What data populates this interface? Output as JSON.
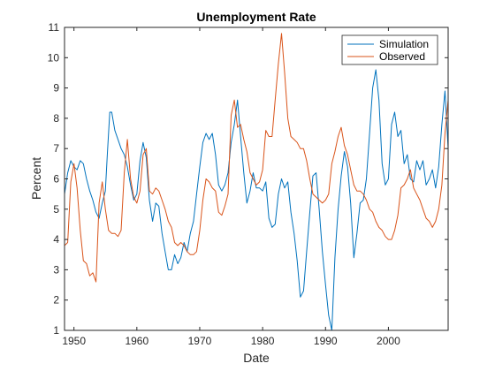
{
  "chart_data": {
    "type": "line",
    "title": "Unemployment Rate",
    "xlabel": "Date",
    "ylabel": "Percent",
    "xlim": [
      1948.5,
      2009.5
    ],
    "ylim": [
      1,
      11
    ],
    "xticks": [
      1950,
      1960,
      1970,
      1980,
      1990,
      2000
    ],
    "xtick_labels": [
      "1950",
      "1960",
      "1970",
      "1980",
      "1990",
      "2000"
    ],
    "yticks": [
      1,
      2,
      3,
      4,
      5,
      6,
      7,
      8,
      9,
      10,
      11
    ],
    "ytick_labels": [
      "1",
      "2",
      "3",
      "4",
      "5",
      "6",
      "7",
      "8",
      "9",
      "10",
      "11"
    ],
    "grid": false,
    "legend_position": "top-right",
    "series": [
      {
        "name": "Simulation",
        "color": "#0072BD",
        "points": [
          [
            1948.5,
            5.5
          ],
          [
            1949.0,
            6.2
          ],
          [
            1949.5,
            6.6
          ],
          [
            1950.0,
            6.4
          ],
          [
            1950.5,
            6.3
          ],
          [
            1951.0,
            6.6
          ],
          [
            1951.5,
            6.5
          ],
          [
            1952.0,
            6.0
          ],
          [
            1952.5,
            5.6
          ],
          [
            1953.0,
            5.3
          ],
          [
            1953.5,
            4.9
          ],
          [
            1954.0,
            4.7
          ],
          [
            1954.5,
            5.2
          ],
          [
            1955.0,
            5.6
          ],
          [
            1955.3,
            6.8
          ],
          [
            1955.7,
            8.2
          ],
          [
            1956.0,
            8.2
          ],
          [
            1956.5,
            7.6
          ],
          [
            1957.0,
            7.3
          ],
          [
            1957.5,
            7.0
          ],
          [
            1958.0,
            6.8
          ],
          [
            1958.5,
            6.4
          ],
          [
            1959.0,
            5.8
          ],
          [
            1959.5,
            5.3
          ],
          [
            1960.0,
            5.5
          ],
          [
            1960.5,
            6.6
          ],
          [
            1961.0,
            7.2
          ],
          [
            1961.5,
            6.7
          ],
          [
            1962.0,
            5.3
          ],
          [
            1962.5,
            4.6
          ],
          [
            1963.0,
            5.2
          ],
          [
            1963.5,
            5.1
          ],
          [
            1964.0,
            4.2
          ],
          [
            1964.5,
            3.6
          ],
          [
            1965.0,
            3.0
          ],
          [
            1965.5,
            3.0
          ],
          [
            1966.0,
            3.5
          ],
          [
            1966.5,
            3.2
          ],
          [
            1967.0,
            3.4
          ],
          [
            1967.5,
            3.9
          ],
          [
            1968.0,
            3.6
          ],
          [
            1968.5,
            4.2
          ],
          [
            1969.0,
            4.6
          ],
          [
            1969.5,
            5.5
          ],
          [
            1970.0,
            6.4
          ],
          [
            1970.5,
            7.2
          ],
          [
            1971.0,
            7.5
          ],
          [
            1971.5,
            7.3
          ],
          [
            1972.0,
            7.5
          ],
          [
            1972.5,
            6.8
          ],
          [
            1973.0,
            5.8
          ],
          [
            1973.5,
            5.6
          ],
          [
            1974.0,
            5.8
          ],
          [
            1974.5,
            6.2
          ],
          [
            1975.0,
            7.2
          ],
          [
            1975.5,
            7.8
          ],
          [
            1976.0,
            8.6
          ],
          [
            1976.5,
            7.4
          ],
          [
            1977.0,
            6.2
          ],
          [
            1977.5,
            5.2
          ],
          [
            1978.0,
            5.6
          ],
          [
            1978.5,
            6.2
          ],
          [
            1979.0,
            5.7
          ],
          [
            1979.5,
            5.7
          ],
          [
            1980.0,
            5.6
          ],
          [
            1980.5,
            5.9
          ],
          [
            1981.0,
            4.7
          ],
          [
            1981.5,
            4.4
          ],
          [
            1982.0,
            4.5
          ],
          [
            1982.5,
            5.5
          ],
          [
            1983.0,
            6.0
          ],
          [
            1983.5,
            5.7
          ],
          [
            1984.0,
            5.9
          ],
          [
            1984.5,
            4.9
          ],
          [
            1985.0,
            4.2
          ],
          [
            1985.5,
            3.3
          ],
          [
            1986.0,
            2.1
          ],
          [
            1986.5,
            2.3
          ],
          [
            1987.0,
            3.6
          ],
          [
            1987.5,
            4.9
          ],
          [
            1988.0,
            6.1
          ],
          [
            1988.5,
            6.2
          ],
          [
            1989.0,
            5.0
          ],
          [
            1989.5,
            3.6
          ],
          [
            1990.0,
            2.5
          ],
          [
            1990.5,
            1.5
          ],
          [
            1991.0,
            1.0
          ],
          [
            1991.5,
            3.4
          ],
          [
            1992.0,
            5.0
          ],
          [
            1992.5,
            6.1
          ],
          [
            1993.0,
            6.9
          ],
          [
            1993.5,
            6.4
          ],
          [
            1994.0,
            5.2
          ],
          [
            1994.5,
            3.4
          ],
          [
            1995.0,
            4.2
          ],
          [
            1995.5,
            5.2
          ],
          [
            1996.0,
            5.3
          ],
          [
            1996.5,
            6.0
          ],
          [
            1997.0,
            7.5
          ],
          [
            1997.5,
            9.0
          ],
          [
            1998.0,
            9.6
          ],
          [
            1998.5,
            8.6
          ],
          [
            1999.0,
            6.5
          ],
          [
            1999.5,
            5.8
          ],
          [
            2000.0,
            6.0
          ],
          [
            2000.5,
            7.8
          ],
          [
            2001.0,
            8.2
          ],
          [
            2001.5,
            7.4
          ],
          [
            2002.0,
            7.6
          ],
          [
            2002.5,
            6.5
          ],
          [
            2003.0,
            6.8
          ],
          [
            2003.5,
            6.0
          ],
          [
            2004.0,
            5.9
          ],
          [
            2004.5,
            6.6
          ],
          [
            2005.0,
            6.3
          ],
          [
            2005.5,
            6.6
          ],
          [
            2006.0,
            5.8
          ],
          [
            2006.5,
            6.0
          ],
          [
            2007.0,
            6.3
          ],
          [
            2007.5,
            5.7
          ],
          [
            2008.0,
            6.4
          ],
          [
            2008.5,
            7.8
          ],
          [
            2009.0,
            8.9
          ],
          [
            2009.5,
            7.0
          ]
        ]
      },
      {
        "name": "Observed",
        "color": "#D95319",
        "points": [
          [
            1948.5,
            3.8
          ],
          [
            1949.0,
            3.9
          ],
          [
            1949.5,
            5.9
          ],
          [
            1950.0,
            6.5
          ],
          [
            1950.5,
            5.7
          ],
          [
            1951.0,
            4.3
          ],
          [
            1951.5,
            3.3
          ],
          [
            1952.0,
            3.2
          ],
          [
            1952.5,
            2.8
          ],
          [
            1953.0,
            2.9
          ],
          [
            1953.5,
            2.6
          ],
          [
            1954.0,
            5.2
          ],
          [
            1954.5,
            5.9
          ],
          [
            1955.0,
            5.0
          ],
          [
            1955.5,
            4.3
          ],
          [
            1956.0,
            4.2
          ],
          [
            1956.5,
            4.2
          ],
          [
            1957.0,
            4.1
          ],
          [
            1957.5,
            4.3
          ],
          [
            1958.0,
            6.2
          ],
          [
            1958.5,
            7.3
          ],
          [
            1959.0,
            6.0
          ],
          [
            1959.5,
            5.4
          ],
          [
            1960.0,
            5.2
          ],
          [
            1960.5,
            5.6
          ],
          [
            1961.0,
            6.8
          ],
          [
            1961.5,
            7.0
          ],
          [
            1962.0,
            5.6
          ],
          [
            1962.5,
            5.5
          ],
          [
            1963.0,
            5.7
          ],
          [
            1963.5,
            5.6
          ],
          [
            1964.0,
            5.3
          ],
          [
            1964.5,
            5.0
          ],
          [
            1965.0,
            4.6
          ],
          [
            1965.5,
            4.4
          ],
          [
            1966.0,
            3.9
          ],
          [
            1966.5,
            3.8
          ],
          [
            1967.0,
            3.9
          ],
          [
            1967.5,
            3.8
          ],
          [
            1968.0,
            3.6
          ],
          [
            1968.5,
            3.5
          ],
          [
            1969.0,
            3.5
          ],
          [
            1969.5,
            3.6
          ],
          [
            1970.0,
            4.3
          ],
          [
            1970.5,
            5.3
          ],
          [
            1971.0,
            6.0
          ],
          [
            1971.5,
            5.9
          ],
          [
            1972.0,
            5.7
          ],
          [
            1972.5,
            5.6
          ],
          [
            1973.0,
            4.9
          ],
          [
            1973.5,
            4.8
          ],
          [
            1974.0,
            5.1
          ],
          [
            1974.5,
            5.5
          ],
          [
            1975.0,
            8.1
          ],
          [
            1975.5,
            8.6
          ],
          [
            1976.0,
            7.7
          ],
          [
            1976.5,
            7.8
          ],
          [
            1977.0,
            7.3
          ],
          [
            1977.5,
            6.9
          ],
          [
            1978.0,
            6.2
          ],
          [
            1978.5,
            6.0
          ],
          [
            1979.0,
            5.8
          ],
          [
            1979.5,
            5.9
          ],
          [
            1980.0,
            6.3
          ],
          [
            1980.5,
            7.6
          ],
          [
            1981.0,
            7.4
          ],
          [
            1981.5,
            7.4
          ],
          [
            1982.0,
            8.6
          ],
          [
            1982.5,
            9.8
          ],
          [
            1983.0,
            10.8
          ],
          [
            1983.5,
            9.5
          ],
          [
            1984.0,
            8.0
          ],
          [
            1984.5,
            7.4
          ],
          [
            1985.0,
            7.3
          ],
          [
            1985.5,
            7.2
          ],
          [
            1986.0,
            7.0
          ],
          [
            1986.5,
            7.0
          ],
          [
            1987.0,
            6.6
          ],
          [
            1987.5,
            6.0
          ],
          [
            1988.0,
            5.5
          ],
          [
            1988.5,
            5.4
          ],
          [
            1989.0,
            5.3
          ],
          [
            1989.5,
            5.2
          ],
          [
            1990.0,
            5.3
          ],
          [
            1990.5,
            5.5
          ],
          [
            1991.0,
            6.5
          ],
          [
            1991.5,
            6.9
          ],
          [
            1992.0,
            7.4
          ],
          [
            1992.5,
            7.7
          ],
          [
            1993.0,
            7.1
          ],
          [
            1993.5,
            6.8
          ],
          [
            1994.0,
            6.3
          ],
          [
            1994.5,
            5.8
          ],
          [
            1995.0,
            5.6
          ],
          [
            1995.5,
            5.6
          ],
          [
            1996.0,
            5.5
          ],
          [
            1996.5,
            5.3
          ],
          [
            1997.0,
            5.0
          ],
          [
            1997.5,
            4.9
          ],
          [
            1998.0,
            4.6
          ],
          [
            1998.5,
            4.4
          ],
          [
            1999.0,
            4.3
          ],
          [
            1999.5,
            4.1
          ],
          [
            2000.0,
            4.0
          ],
          [
            2000.5,
            4.0
          ],
          [
            2001.0,
            4.3
          ],
          [
            2001.5,
            4.8
          ],
          [
            2002.0,
            5.7
          ],
          [
            2002.5,
            5.8
          ],
          [
            2003.0,
            6.0
          ],
          [
            2003.5,
            6.3
          ],
          [
            2004.0,
            5.7
          ],
          [
            2004.5,
            5.5
          ],
          [
            2005.0,
            5.3
          ],
          [
            2005.5,
            5.0
          ],
          [
            2006.0,
            4.7
          ],
          [
            2006.5,
            4.6
          ],
          [
            2007.0,
            4.4
          ],
          [
            2007.5,
            4.6
          ],
          [
            2008.0,
            5.0
          ],
          [
            2008.5,
            5.8
          ],
          [
            2009.0,
            7.5
          ],
          [
            2009.5,
            8.6
          ]
        ]
      }
    ]
  }
}
